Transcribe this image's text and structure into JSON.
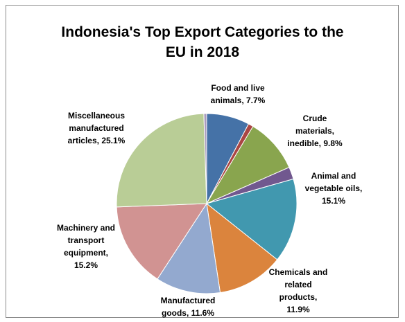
{
  "chart_data": {
    "type": "pie",
    "title_lines": [
      "Indonesia's Top Export Categories to the",
      "EU in 2018"
    ],
    "slices": [
      {
        "name": "Food and live animals",
        "value": 7.7,
        "color": "#4572a7",
        "label_lines": [
          "Food and live",
          "animals, 7.7%"
        ]
      },
      {
        "name": "",
        "value": 0.9,
        "color": "#aa4643",
        "label_lines": []
      },
      {
        "name": "Crude materials, inedible",
        "value": 9.8,
        "color": "#89a54e",
        "label_lines": [
          "Crude",
          "materials,",
          "inedible, 9.8%"
        ]
      },
      {
        "name": "",
        "value": 2.2,
        "color": "#71588f",
        "label_lines": []
      },
      {
        "name": "Animal and vegetable oils",
        "value": 15.1,
        "color": "#4198af",
        "label_lines": [
          "Animal and",
          "vegetable oils,",
          "15.1%"
        ]
      },
      {
        "name": "Chemicals and related products",
        "value": 11.9,
        "color": "#db843d",
        "label_lines": [
          "Chemicals and",
          "related",
          "products,",
          "11.9%"
        ]
      },
      {
        "name": "Manufactured goods",
        "value": 11.6,
        "color": "#93a9cf",
        "label_lines": [
          "Manufactured",
          "goods, 11.6%"
        ]
      },
      {
        "name": "Machinery and transport equipment",
        "value": 15.2,
        "color": "#d19392",
        "label_lines": [
          "Machinery and",
          "transport",
          "equipment,",
          "15.2%"
        ]
      },
      {
        "name": "Miscellaneous manufactured articles",
        "value": 25.1,
        "color": "#b9cd96",
        "label_lines": [
          "Miscellaneous",
          "manufactured",
          "articles, 25.1%"
        ]
      },
      {
        "name": "",
        "value": 0.5,
        "color": "#a99bbd",
        "label_lines": []
      }
    ]
  }
}
